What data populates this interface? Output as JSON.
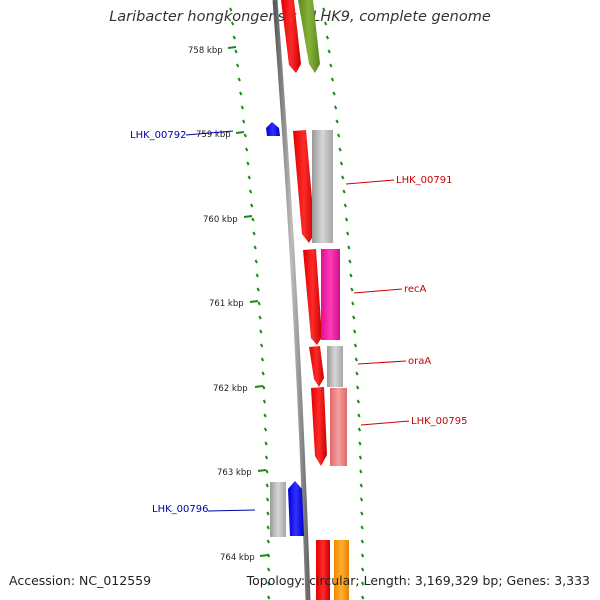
{
  "title": "Laribacter hongkongensis HLHK9, complete genome",
  "footer": {
    "accession": "Accession: NC_012559",
    "topology": "Topology: circular; Length: 3,169,329 bp; Genes: 3,333"
  },
  "colors": {
    "scale_tick": "#1a8a1a",
    "backbone": "#8a8a8a",
    "forward_label": "#cc0000",
    "reverse_label": "#0000aa",
    "cds": "#ff0000",
    "reverse_cds": "#0000ff",
    "gray_feature": "#b0b0b0",
    "olive_feature": "#6e9a2a",
    "magenta_feature": "#ff1aa8",
    "pink_feature": "#f08080",
    "orange_feature": "#ff9900"
  },
  "scale_labels": [
    "758 kbp",
    "759 kbp",
    "760 kbp",
    "761 kbp",
    "762 kbp",
    "763 kbp",
    "764 kbp"
  ],
  "gene_labels": [
    {
      "text": "LHK_00791",
      "strand": "forward"
    },
    {
      "text": "recA",
      "strand": "forward"
    },
    {
      "text": "oraA",
      "strand": "forward"
    },
    {
      "text": "LHK_00795",
      "strand": "forward"
    },
    {
      "text": "LHK_00792",
      "strand": "reverse"
    },
    {
      "text": "LHK_00796",
      "strand": "reverse"
    }
  ]
}
